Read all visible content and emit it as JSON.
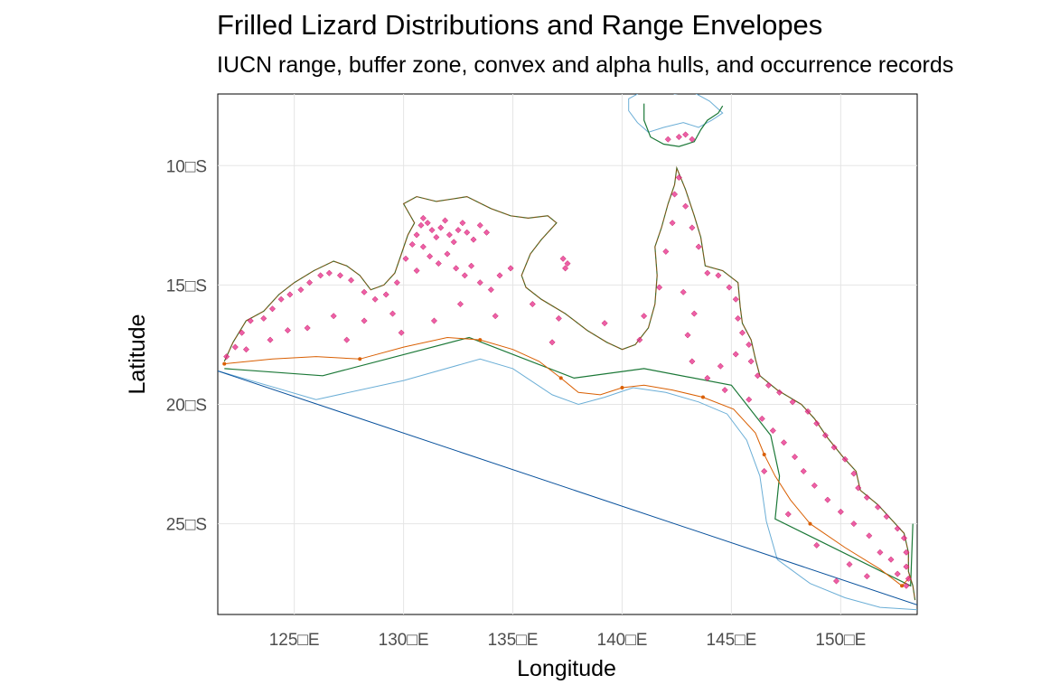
{
  "title": "Frilled Lizard Distributions and Range Envelopes",
  "subtitle": "IUCN range, buffer zone, convex and alpha hulls, and occurrence records",
  "chart_data": {
    "type": "scatter",
    "title": "Frilled Lizard Distributions and Range Envelopes",
    "subtitle": "IUCN range, buffer zone, convex and alpha hulls, and occurrence records",
    "xlabel": "Longitude",
    "ylabel": "Latitude",
    "xlim": [
      121.5,
      153.5
    ],
    "ylim": [
      -28.8,
      -7.0
    ],
    "grid": true,
    "x_ticks": [
      {
        "value": 125,
        "label": "125□E"
      },
      {
        "value": 130,
        "label": "130□E"
      },
      {
        "value": 135,
        "label": "135□E"
      },
      {
        "value": 140,
        "label": "140□E"
      },
      {
        "value": 145,
        "label": "145□E"
      },
      {
        "value": 150,
        "label": "150□E"
      }
    ],
    "y_ticks": [
      {
        "value": -10,
        "label": "10□S"
      },
      {
        "value": -15,
        "label": "15□S"
      },
      {
        "value": -20,
        "label": "20□S"
      },
      {
        "value": -25,
        "label": "25□S"
      }
    ],
    "colors": {
      "occurrence": "#e7298a",
      "alpha_hull": "#d95f02",
      "convex_hull": "#1b7837",
      "buffer": "#6baed6",
      "iucn": "#08519c",
      "coast": "#7a5a1a",
      "grid": "#e5e5e5"
    },
    "coast_main": [
      [
        121.8,
        -18.2
      ],
      [
        122.2,
        -17.4
      ],
      [
        122.8,
        -16.5
      ],
      [
        123.6,
        -16.1
      ],
      [
        124.3,
        -15.4
      ],
      [
        125.0,
        -14.9
      ],
      [
        125.9,
        -14.4
      ],
      [
        126.8,
        -14.0
      ],
      [
        127.4,
        -14.2
      ],
      [
        128.0,
        -14.6
      ],
      [
        128.5,
        -15.2
      ],
      [
        129.1,
        -15.0
      ],
      [
        129.6,
        -14.5
      ],
      [
        129.9,
        -13.7
      ],
      [
        130.2,
        -12.9
      ],
      [
        130.5,
        -12.4
      ],
      [
        130.0,
        -11.6
      ],
      [
        130.6,
        -11.3
      ],
      [
        131.5,
        -11.5
      ],
      [
        132.2,
        -11.4
      ],
      [
        132.9,
        -11.3
      ],
      [
        134.0,
        -11.8
      ],
      [
        134.9,
        -12.1
      ],
      [
        135.7,
        -12.2
      ],
      [
        136.6,
        -12.1
      ],
      [
        137.0,
        -12.4
      ],
      [
        136.3,
        -13.1
      ],
      [
        135.8,
        -13.7
      ],
      [
        135.4,
        -14.6
      ],
      [
        135.6,
        -15.1
      ],
      [
        136.3,
        -15.6
      ],
      [
        137.4,
        -16.2
      ],
      [
        138.4,
        -16.9
      ],
      [
        139.3,
        -17.4
      ],
      [
        140.0,
        -17.7
      ],
      [
        140.6,
        -17.5
      ],
      [
        141.2,
        -16.8
      ],
      [
        141.5,
        -15.8
      ],
      [
        141.6,
        -14.6
      ],
      [
        141.5,
        -13.4
      ],
      [
        141.8,
        -12.6
      ],
      [
        142.1,
        -11.6
      ],
      [
        142.4,
        -10.8
      ],
      [
        142.5,
        -10.1
      ],
      [
        142.9,
        -11.0
      ],
      [
        143.3,
        -12.1
      ],
      [
        143.6,
        -13.0
      ],
      [
        143.8,
        -14.2
      ],
      [
        144.6,
        -14.4
      ],
      [
        145.3,
        -14.9
      ],
      [
        145.4,
        -15.9
      ],
      [
        145.5,
        -16.6
      ],
      [
        145.9,
        -17.3
      ],
      [
        146.1,
        -18.1
      ],
      [
        146.3,
        -18.8
      ],
      [
        147.1,
        -19.4
      ],
      [
        148.2,
        -20.0
      ],
      [
        148.8,
        -20.6
      ],
      [
        149.4,
        -21.4
      ],
      [
        150.1,
        -22.2
      ],
      [
        150.7,
        -22.8
      ],
      [
        150.9,
        -23.6
      ],
      [
        151.7,
        -24.2
      ],
      [
        152.4,
        -24.9
      ],
      [
        152.9,
        -25.4
      ],
      [
        153.1,
        -26.2
      ],
      [
        153.1,
        -27.0
      ],
      [
        153.3,
        -27.6
      ],
      [
        153.4,
        -28.2
      ]
    ],
    "coast_png": [
      [
        141.0,
        -7.4
      ],
      [
        141.0,
        -8.1
      ],
      [
        141.3,
        -8.8
      ],
      [
        141.9,
        -9.1
      ],
      [
        142.6,
        -9.2
      ],
      [
        143.3,
        -9.0
      ],
      [
        143.6,
        -8.5
      ],
      [
        143.9,
        -8.1
      ],
      [
        144.4,
        -7.8
      ],
      [
        144.6,
        -7.5
      ]
    ],
    "island_png": [
      [
        140.3,
        -7.2
      ],
      [
        140.9,
        -6.9
      ],
      [
        141.8,
        -6.8
      ],
      [
        142.4,
        -7.0
      ],
      [
        143.2,
        -6.9
      ],
      [
        144.0,
        -7.3
      ],
      [
        144.6,
        -7.8
      ],
      [
        144.1,
        -8.1
      ],
      [
        143.5,
        -8.4
      ],
      [
        142.8,
        -8.2
      ],
      [
        141.9,
        -8.4
      ],
      [
        141.2,
        -8.6
      ],
      [
        140.7,
        -8.2
      ],
      [
        140.3,
        -7.7
      ]
    ],
    "iucn_range": [
      [
        121.5,
        -18.6
      ],
      [
        153.5,
        -28.4
      ]
    ],
    "buffer_zone": [
      [
        121.5,
        -18.6
      ],
      [
        126.0,
        -19.8
      ],
      [
        130.0,
        -19.0
      ],
      [
        133.5,
        -18.1
      ],
      [
        135.0,
        -18.5
      ],
      [
        136.8,
        -19.6
      ],
      [
        138.0,
        -20.0
      ],
      [
        139.2,
        -19.7
      ],
      [
        140.5,
        -19.3
      ],
      [
        142.0,
        -19.5
      ],
      [
        143.5,
        -19.9
      ],
      [
        144.8,
        -20.4
      ],
      [
        145.7,
        -21.5
      ],
      [
        146.3,
        -23.0
      ],
      [
        146.6,
        -24.9
      ],
      [
        147.1,
        -26.5
      ],
      [
        148.6,
        -27.5
      ],
      [
        150.2,
        -28.1
      ],
      [
        151.8,
        -28.5
      ],
      [
        153.5,
        -28.6
      ]
    ],
    "convex_hull": [
      [
        121.8,
        -18.5
      ],
      [
        126.3,
        -18.8
      ],
      [
        133.0,
        -17.2
      ],
      [
        137.8,
        -18.9
      ],
      [
        141.0,
        -18.5
      ],
      [
        145.0,
        -19.2
      ],
      [
        146.8,
        -21.3
      ],
      [
        147.2,
        -23.0
      ],
      [
        147.0,
        -24.8
      ],
      [
        153.2,
        -27.6
      ],
      [
        153.3,
        -25.0
      ]
    ],
    "alpha_hull": [
      [
        121.8,
        -18.3
      ],
      [
        124.0,
        -18.1
      ],
      [
        126.0,
        -18.0
      ],
      [
        128.0,
        -18.1
      ],
      [
        130.0,
        -17.6
      ],
      [
        132.0,
        -17.2
      ],
      [
        133.5,
        -17.3
      ],
      [
        135.0,
        -17.7
      ],
      [
        136.2,
        -18.2
      ],
      [
        137.2,
        -18.9
      ],
      [
        138.0,
        -19.5
      ],
      [
        139.0,
        -19.6
      ],
      [
        140.0,
        -19.3
      ],
      [
        141.0,
        -19.2
      ],
      [
        142.3,
        -19.4
      ],
      [
        143.7,
        -19.7
      ],
      [
        145.1,
        -20.2
      ],
      [
        146.1,
        -21.2
      ],
      [
        146.5,
        -22.1
      ],
      [
        147.0,
        -23.0
      ],
      [
        147.7,
        -24.0
      ],
      [
        148.6,
        -25.0
      ],
      [
        150.2,
        -26.0
      ],
      [
        151.8,
        -26.9
      ],
      [
        152.8,
        -27.6
      ],
      [
        153.2,
        -27.2
      ]
    ],
    "occurrence_records": [
      [
        121.9,
        -18.0
      ],
      [
        122.3,
        -17.6
      ],
      [
        122.6,
        -17.0
      ],
      [
        123.0,
        -16.5
      ],
      [
        123.6,
        -16.4
      ],
      [
        124.0,
        -16.0
      ],
      [
        124.4,
        -15.6
      ],
      [
        124.8,
        -15.4
      ],
      [
        125.3,
        -15.2
      ],
      [
        125.7,
        -14.9
      ],
      [
        126.2,
        -14.6
      ],
      [
        126.6,
        -14.5
      ],
      [
        127.1,
        -14.6
      ],
      [
        127.6,
        -14.8
      ],
      [
        128.2,
        -15.3
      ],
      [
        128.7,
        -15.6
      ],
      [
        129.2,
        -15.4
      ],
      [
        129.7,
        -14.9
      ],
      [
        130.1,
        -13.9
      ],
      [
        130.4,
        -13.3
      ],
      [
        130.6,
        -12.9
      ],
      [
        130.8,
        -12.5
      ],
      [
        130.9,
        -12.2
      ],
      [
        131.1,
        -12.4
      ],
      [
        131.3,
        -12.7
      ],
      [
        131.5,
        -13.0
      ],
      [
        131.7,
        -12.6
      ],
      [
        131.9,
        -12.3
      ],
      [
        132.1,
        -12.9
      ],
      [
        132.3,
        -13.2
      ],
      [
        132.5,
        -12.7
      ],
      [
        132.7,
        -12.4
      ],
      [
        132.9,
        -12.8
      ],
      [
        133.2,
        -13.1
      ],
      [
        133.5,
        -12.5
      ],
      [
        133.8,
        -12.8
      ],
      [
        130.9,
        -13.4
      ],
      [
        131.2,
        -13.8
      ],
      [
        131.6,
        -14.1
      ],
      [
        132.0,
        -13.7
      ],
      [
        132.4,
        -14.3
      ],
      [
        132.8,
        -14.6
      ],
      [
        133.1,
        -14.2
      ],
      [
        133.5,
        -14.9
      ],
      [
        134.0,
        -15.2
      ],
      [
        134.4,
        -14.6
      ],
      [
        134.9,
        -14.3
      ],
      [
        130.6,
        -14.4
      ],
      [
        129.5,
        -16.2
      ],
      [
        128.2,
        -16.5
      ],
      [
        126.8,
        -16.3
      ],
      [
        125.6,
        -16.8
      ],
      [
        124.7,
        -16.9
      ],
      [
        123.9,
        -17.3
      ],
      [
        122.8,
        -17.7
      ],
      [
        127.4,
        -17.3
      ],
      [
        129.9,
        -17.0
      ],
      [
        131.4,
        -16.5
      ],
      [
        132.6,
        -15.8
      ],
      [
        134.2,
        -16.3
      ],
      [
        135.9,
        -15.8
      ],
      [
        137.1,
        -16.4
      ],
      [
        137.3,
        -13.9
      ],
      [
        137.5,
        -14.1
      ],
      [
        137.4,
        -14.3
      ],
      [
        139.2,
        -16.6
      ],
      [
        136.8,
        -17.4
      ],
      [
        140.8,
        -17.3
      ],
      [
        141.0,
        -16.3
      ],
      [
        141.7,
        -15.1
      ],
      [
        142.0,
        -13.6
      ],
      [
        142.3,
        -12.4
      ],
      [
        142.4,
        -11.2
      ],
      [
        142.6,
        -10.5
      ],
      [
        142.9,
        -11.7
      ],
      [
        143.2,
        -12.6
      ],
      [
        143.5,
        -13.4
      ],
      [
        143.9,
        -14.5
      ],
      [
        144.4,
        -14.6
      ],
      [
        144.9,
        -15.1
      ],
      [
        145.2,
        -15.6
      ],
      [
        145.3,
        -16.4
      ],
      [
        145.5,
        -17.0
      ],
      [
        145.8,
        -17.5
      ],
      [
        145.2,
        -17.9
      ],
      [
        144.5,
        -18.4
      ],
      [
        145.9,
        -18.2
      ],
      [
        146.2,
        -18.8
      ],
      [
        146.7,
        -19.2
      ],
      [
        147.2,
        -19.5
      ],
      [
        147.8,
        -19.9
      ],
      [
        148.5,
        -20.3
      ],
      [
        148.9,
        -20.8
      ],
      [
        149.3,
        -21.3
      ],
      [
        149.7,
        -21.8
      ],
      [
        150.2,
        -22.3
      ],
      [
        150.6,
        -22.9
      ],
      [
        150.8,
        -23.5
      ],
      [
        151.2,
        -23.9
      ],
      [
        151.7,
        -24.3
      ],
      [
        152.1,
        -24.7
      ],
      [
        152.6,
        -25.2
      ],
      [
        152.9,
        -25.6
      ],
      [
        153.0,
        -26.2
      ],
      [
        153.0,
        -26.8
      ],
      [
        153.1,
        -27.3
      ],
      [
        153.0,
        -27.6
      ],
      [
        152.6,
        -27.1
      ],
      [
        152.3,
        -26.5
      ],
      [
        151.8,
        -26.2
      ],
      [
        151.3,
        -25.5
      ],
      [
        150.6,
        -25.0
      ],
      [
        150.0,
        -24.5
      ],
      [
        149.4,
        -24.0
      ],
      [
        148.8,
        -23.4
      ],
      [
        148.3,
        -22.8
      ],
      [
        147.9,
        -22.2
      ],
      [
        147.4,
        -21.6
      ],
      [
        146.9,
        -21.1
      ],
      [
        146.4,
        -20.6
      ],
      [
        145.8,
        -19.8
      ],
      [
        144.7,
        -19.4
      ],
      [
        143.9,
        -18.9
      ],
      [
        143.2,
        -18.2
      ],
      [
        143.0,
        -17.1
      ],
      [
        143.3,
        -16.2
      ],
      [
        142.8,
        -15.3
      ],
      [
        147.6,
        -24.6
      ],
      [
        148.9,
        -25.9
      ],
      [
        150.4,
        -26.7
      ],
      [
        151.2,
        -27.2
      ],
      [
        149.8,
        -27.4
      ],
      [
        146.5,
        -22.8
      ],
      [
        142.1,
        -8.9
      ],
      [
        142.6,
        -8.8
      ],
      [
        143.2,
        -8.9
      ],
      [
        142.9,
        -8.7
      ]
    ]
  }
}
